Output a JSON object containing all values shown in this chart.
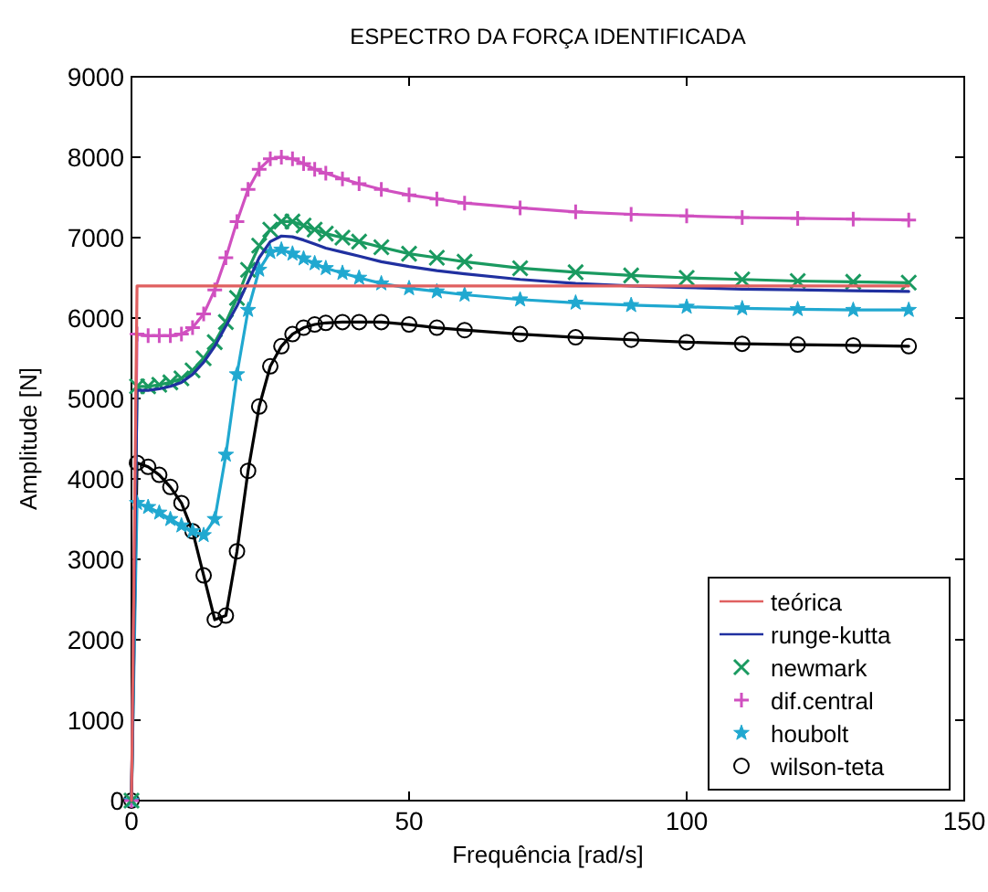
{
  "chart_data": {
    "type": "line",
    "title": "ESPECTRO DA FORÇA IDENTIFICADA",
    "xlabel": "Frequência  [rad/s]",
    "ylabel": "Amplitude [N]",
    "xlim": [
      0,
      150
    ],
    "xticks": [
      0,
      50,
      100,
      150
    ],
    "ylim": [
      0,
      9000
    ],
    "yticks": [
      0,
      1000,
      2000,
      3000,
      4000,
      5000,
      6000,
      7000,
      8000,
      9000
    ],
    "grid": false,
    "legend": "bottom right",
    "line_style": "solid",
    "x": [
      0,
      1,
      3,
      5,
      7,
      9,
      11,
      13,
      15,
      17,
      19,
      21,
      23,
      25,
      27,
      29,
      31,
      33,
      35,
      38,
      41,
      45,
      50,
      55,
      60,
      70,
      80,
      90,
      100,
      110,
      120,
      130,
      140
    ],
    "series": [
      {
        "name": "teórica",
        "color": "#e06060",
        "marker": "none",
        "x": [
          0,
          1,
          140
        ],
        "values": [
          0,
          6400,
          6400
        ]
      },
      {
        "name": "runge-kutta",
        "color": "#2030a0",
        "marker": "none",
        "values": [
          0,
          5100,
          5100,
          5120,
          5150,
          5200,
          5300,
          5450,
          5650,
          5900,
          6150,
          6450,
          6750,
          6950,
          7020,
          7010,
          6970,
          6920,
          6870,
          6820,
          6770,
          6700,
          6640,
          6590,
          6550,
          6480,
          6430,
          6400,
          6380,
          6360,
          6350,
          6340,
          6330
        ]
      },
      {
        "name": "newmark",
        "color": "#1a9a60",
        "marker": "cross",
        "values": [
          0,
          5150,
          5150,
          5170,
          5200,
          5250,
          5350,
          5500,
          5700,
          5950,
          6250,
          6600,
          6900,
          7100,
          7200,
          7200,
          7150,
          7100,
          7050,
          7000,
          6950,
          6880,
          6800,
          6750,
          6700,
          6620,
          6570,
          6530,
          6500,
          6480,
          6460,
          6450,
          6440
        ]
      },
      {
        "name": "dif.central",
        "color": "#d050c0",
        "marker": "plus",
        "values": [
          0,
          5800,
          5780,
          5780,
          5780,
          5800,
          5880,
          6050,
          6350,
          6750,
          7200,
          7600,
          7850,
          7980,
          8000,
          7980,
          7920,
          7850,
          7800,
          7730,
          7670,
          7600,
          7530,
          7480,
          7430,
          7370,
          7320,
          7290,
          7270,
          7250,
          7240,
          7230,
          7220
        ]
      },
      {
        "name": "houbolt",
        "color": "#20a8d0",
        "marker": "star",
        "values": [
          0,
          3700,
          3650,
          3580,
          3500,
          3420,
          3350,
          3300,
          3500,
          4300,
          5300,
          6100,
          6600,
          6820,
          6850,
          6800,
          6740,
          6680,
          6620,
          6560,
          6500,
          6430,
          6370,
          6330,
          6290,
          6230,
          6190,
          6160,
          6140,
          6120,
          6110,
          6100,
          6100
        ]
      },
      {
        "name": "wilson-teta",
        "color": "#000000",
        "marker": "circle",
        "values": [
          0,
          4200,
          4150,
          4050,
          3900,
          3700,
          3350,
          2800,
          2250,
          2300,
          3100,
          4100,
          4900,
          5400,
          5650,
          5800,
          5880,
          5920,
          5940,
          5950,
          5950,
          5950,
          5920,
          5880,
          5850,
          5800,
          5760,
          5730,
          5700,
          5680,
          5670,
          5660,
          5650
        ]
      }
    ]
  }
}
